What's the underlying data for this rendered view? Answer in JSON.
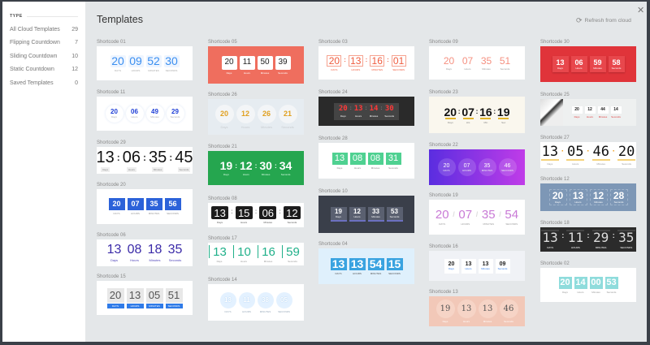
{
  "window": {
    "close_icon": "close-icon",
    "title": "Templates",
    "refresh_label": "Refresh from cloud",
    "refresh_icon": "refresh-icon"
  },
  "sidebar": {
    "heading": "TYPE",
    "items": [
      {
        "label": "All Cloud Templates",
        "count": "29"
      },
      {
        "label": "Flipping Countdown",
        "count": "7"
      },
      {
        "label": "Sliding Countdown",
        "count": "10"
      },
      {
        "label": "Static Countdown",
        "count": "12"
      },
      {
        "label": "Saved Templates",
        "count": "0"
      }
    ]
  },
  "templates": [
    {
      "name": "Shortcode 01",
      "values": [
        "20",
        "09",
        "52",
        "30"
      ],
      "labels": [
        "DAYS",
        "HOURS",
        "MINUTES",
        "SECONDS"
      ]
    },
    {
      "name": "Shortcode 11",
      "values": [
        "20",
        "06",
        "49",
        "29"
      ],
      "labels": [
        "Days",
        "Hours",
        "Minutes",
        "Seconds"
      ]
    },
    {
      "name": "Shortcode 29",
      "values": [
        "13",
        "06",
        "35",
        "45"
      ],
      "labels": [
        "Days",
        "Hours",
        "Minutes",
        "Seconds"
      ],
      "separator": ":"
    },
    {
      "name": "Shortcode 20",
      "values": [
        "20",
        "07",
        "35",
        "56"
      ],
      "labels": [
        "DAYS",
        "HOURS",
        "MINUTES",
        "SECONDS"
      ]
    },
    {
      "name": "Shortcode 06",
      "values": [
        "13",
        "08",
        "18",
        "35"
      ],
      "labels": [
        "Days",
        "Hours",
        "Minutes",
        "Seconds"
      ]
    },
    {
      "name": "Shortcode 15",
      "values": [
        "20",
        "13",
        "05",
        "51"
      ],
      "labels": [
        "DAYS",
        "HOURS",
        "MINUTES",
        "SECONDS"
      ]
    },
    {
      "name": "Shortcode 05",
      "values": [
        "20",
        "11",
        "50",
        "39"
      ],
      "labels": [
        "Days",
        "Hours",
        "Minutes",
        "Seconds"
      ]
    },
    {
      "name": "Shortcode 26",
      "values": [
        "20",
        "12",
        "26",
        "21"
      ],
      "labels": [
        "Days",
        "Hours",
        "Minutes",
        "Seconds"
      ]
    },
    {
      "name": "Shortcode 21",
      "values": [
        "19",
        "12",
        "30",
        "34"
      ],
      "labels": [
        "Days",
        "Hours",
        "Minutes",
        "Seconds"
      ],
      "separator": ":"
    },
    {
      "name": "Shortcode 08",
      "values": [
        "13",
        "15",
        "06",
        "12"
      ],
      "labels": [
        "Days",
        "Hours",
        "Minutes",
        "Seconds"
      ],
      "separator": ":"
    },
    {
      "name": "Shortcode 17",
      "values": [
        "13",
        "10",
        "16",
        "59"
      ],
      "labels": [
        "Days",
        "Hours",
        "Minutes",
        "Seconds"
      ]
    },
    {
      "name": "Shortcode 14",
      "values": [
        "13",
        "11",
        "38",
        "05"
      ],
      "labels": [
        "DAYS",
        "HOURS",
        "MINUTES",
        "SECONDS"
      ]
    },
    {
      "name": "Shortcode 03",
      "values": [
        "20",
        "13",
        "16",
        "01"
      ],
      "labels": [
        "DAYS",
        "HOURS",
        "MINUTES",
        "SECONDS"
      ],
      "separator": ":"
    },
    {
      "name": "Shortcode 24",
      "values": [
        "20",
        "13",
        "14",
        "30"
      ],
      "labels": [
        "Days",
        "Hours",
        "Minutes",
        "Seconds"
      ],
      "separator": ":"
    },
    {
      "name": "Shortcode 28",
      "values": [
        "13",
        "08",
        "08",
        "31"
      ],
      "labels": [
        "Days",
        "Hours",
        "Minutes",
        "Seconds"
      ]
    },
    {
      "name": "Shortcode 10",
      "values": [
        "19",
        "12",
        "33",
        "53"
      ],
      "labels": [
        "Days",
        "Hours",
        "Minutes",
        "Seconds"
      ]
    },
    {
      "name": "Shortcode 04",
      "values": [
        "13",
        "13",
        "54",
        "15"
      ],
      "labels": [
        "DAYS",
        "HOURS",
        "MINUTES",
        "SECONDS"
      ]
    },
    {
      "name": "Shortcode 09",
      "values": [
        "20",
        "07",
        "35",
        "51"
      ],
      "labels": [
        "Days",
        "Hours",
        "Minutes",
        "Seconds"
      ]
    },
    {
      "name": "Shortcode 23",
      "values": [
        "20",
        "07",
        "16",
        "19"
      ],
      "labels": [
        "Days",
        "Hrs",
        "Min",
        "Sec"
      ],
      "separator": ":"
    },
    {
      "name": "Shortcode 22",
      "values": [
        "20",
        "07",
        "35",
        "46"
      ],
      "labels": [
        "DAYS",
        "HOURS",
        "MINUTES",
        "SECONDS"
      ]
    },
    {
      "name": "Shortcode 19",
      "values": [
        "20",
        "07",
        "35",
        "54"
      ],
      "labels": [
        "DAYS",
        "HOURS",
        "MINUTES",
        "SECONDS"
      ],
      "separator": "/"
    },
    {
      "name": "Shortcode 16",
      "values": [
        "20",
        "13",
        "13",
        "09"
      ],
      "labels": [
        "Days",
        "Hours",
        "Minutes",
        "Seconds"
      ]
    },
    {
      "name": "Shortcode 13",
      "values": [
        "19",
        "13",
        "13",
        "46"
      ],
      "labels": [
        "Days",
        "Hours",
        "Minutes",
        "Seconds"
      ]
    },
    {
      "name": "Shortcode 30",
      "values": [
        "13",
        "06",
        "59",
        "58"
      ],
      "labels": [
        "Days",
        "Hours",
        "Minutes",
        "Seconds"
      ]
    },
    {
      "name": "Shortcode 25",
      "values": [
        "20",
        "12",
        "44",
        "14"
      ],
      "labels": [
        "Days",
        "Hours",
        "Minutes",
        "Seconds"
      ]
    },
    {
      "name": "Shortcode 27",
      "values": [
        "13",
        "05",
        "46",
        "20"
      ],
      "labels": [
        "Days",
        "Hours",
        "Minutes",
        "Seconds"
      ],
      "separator": "·"
    },
    {
      "name": "Shortcode 12",
      "values": [
        "20",
        "13",
        "12",
        "28"
      ],
      "labels": [
        "Days",
        "Hours",
        "Minutes",
        "Seconds"
      ]
    },
    {
      "name": "Shortcode 18",
      "values": [
        "13",
        "11",
        "29",
        "35"
      ],
      "labels": [
        "DAYS",
        "HOURS",
        "MINUTES",
        "SECONDS"
      ],
      "separator": ":"
    },
    {
      "name": "Shortcode 02",
      "values": [
        "20",
        "14",
        "00",
        "53"
      ],
      "labels": [
        "Days",
        "Hours",
        "Minutes",
        "Seconds"
      ]
    }
  ]
}
